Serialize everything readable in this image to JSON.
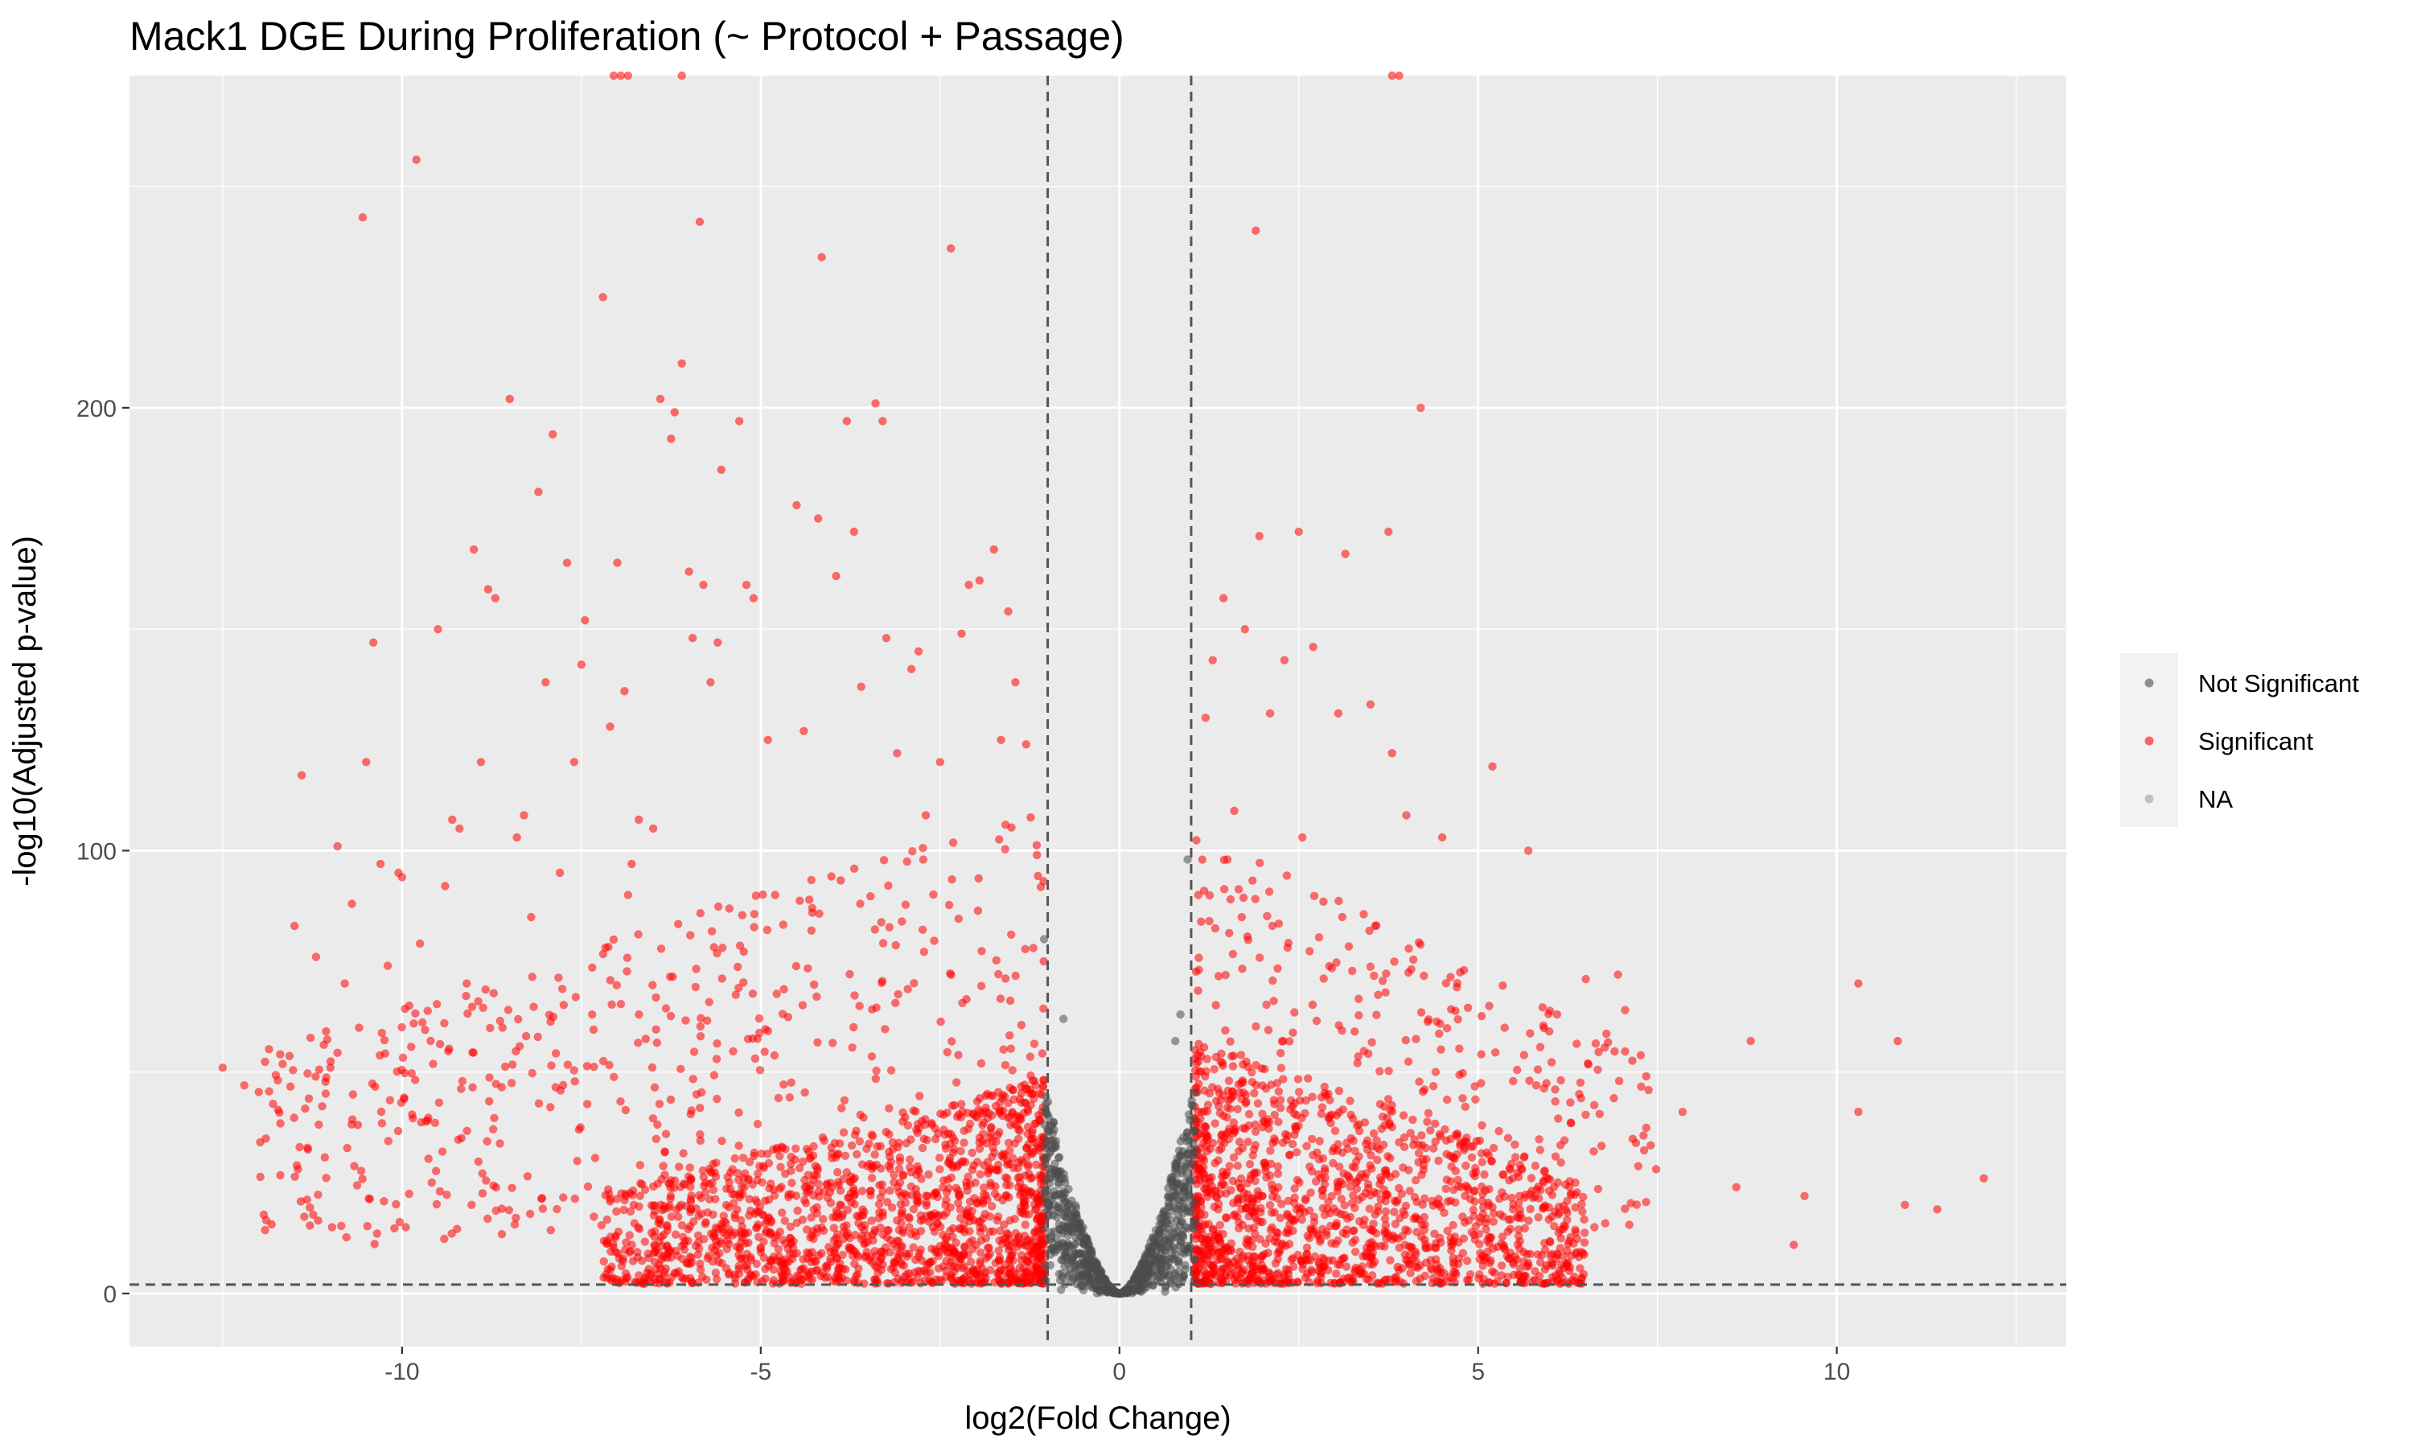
{
  "chart_data": {
    "type": "scatter",
    "title": "Mack1 DGE During Proliferation (~ Protocol + Passage)",
    "xlabel": "log2(Fold Change)",
    "ylabel": "-log10(Adjusted p-value)",
    "xlim": [
      -13.8,
      13.2
    ],
    "ylim": [
      -12,
      275
    ],
    "x_ticks": [
      -10,
      -5,
      0,
      5,
      10
    ],
    "y_ticks": [
      0,
      100,
      200
    ],
    "x_minor_ticks": [
      -12.5,
      -7.5,
      -2.5,
      2.5,
      7.5,
      12.5
    ],
    "y_minor_ticks": [
      50,
      150,
      250
    ],
    "grid": true,
    "thresholds": {
      "log2fc": [
        -1,
        1
      ],
      "neg_log10_padj": 2
    },
    "legend": {
      "position": "right",
      "entries": [
        {
          "label": "Not Significant",
          "color": "#4d4d4d"
        },
        {
          "label": "Significant",
          "color": "#ff0000"
        },
        {
          "label": "NA",
          "color": "#9e9e9e"
        }
      ]
    },
    "series": [
      {
        "name": "Significant",
        "color": "#ff0000",
        "points": [
          [
            -12.5,
            51
          ],
          [
            -12.2,
            47
          ],
          [
            -11.9,
            35
          ],
          [
            -11.7,
            54
          ],
          [
            -11.5,
            83
          ],
          [
            -11.4,
            117
          ],
          [
            -11.3,
            44
          ],
          [
            -11.2,
            76
          ],
          [
            -11.0,
            51
          ],
          [
            -10.9,
            101
          ],
          [
            -10.8,
            70
          ],
          [
            -10.7,
            88
          ],
          [
            -10.6,
            60
          ],
          [
            -10.55,
            243
          ],
          [
            -10.5,
            120
          ],
          [
            -10.4,
            147
          ],
          [
            -10.3,
            97
          ],
          [
            -10.2,
            74
          ],
          [
            -10.05,
            95
          ],
          [
            -10.0,
            94
          ],
          [
            -9.9,
            65
          ],
          [
            -9.8,
            256
          ],
          [
            -9.75,
            79
          ],
          [
            -9.5,
            150
          ],
          [
            -9.4,
            92
          ],
          [
            -9.3,
            107
          ],
          [
            -9.2,
            105
          ],
          [
            -9.1,
            70
          ],
          [
            -9.0,
            168
          ],
          [
            -8.9,
            120
          ],
          [
            -8.8,
            159
          ],
          [
            -8.7,
            157
          ],
          [
            -8.6,
            60
          ],
          [
            -8.5,
            202
          ],
          [
            -8.4,
            103
          ],
          [
            -8.3,
            108
          ],
          [
            -8.2,
            85
          ],
          [
            -8.1,
            181
          ],
          [
            -8.0,
            138
          ],
          [
            -7.9,
            194
          ],
          [
            -7.8,
            95
          ],
          [
            -7.7,
            165
          ],
          [
            -7.6,
            120
          ],
          [
            -7.5,
            142
          ],
          [
            -7.45,
            152
          ],
          [
            -7.35,
            63
          ],
          [
            -7.2,
            225
          ],
          [
            -7.1,
            128
          ],
          [
            -7.0,
            165
          ],
          [
            -6.9,
            136
          ],
          [
            -6.85,
            90
          ],
          [
            -6.8,
            97
          ],
          [
            -6.7,
            107
          ],
          [
            -6.5,
            105
          ],
          [
            -6.4,
            202
          ],
          [
            -6.25,
            193
          ],
          [
            -6.2,
            199
          ],
          [
            -6.1,
            210
          ],
          [
            -6.0,
            163
          ],
          [
            -5.95,
            148
          ],
          [
            -5.85,
            242
          ],
          [
            -5.8,
            160
          ],
          [
            -5.7,
            138
          ],
          [
            -5.6,
            147
          ],
          [
            -5.55,
            186
          ],
          [
            -5.3,
            197
          ],
          [
            -5.2,
            160
          ],
          [
            -5.1,
            157
          ],
          [
            -4.9,
            125
          ],
          [
            -4.8,
            90
          ],
          [
            -4.5,
            178
          ],
          [
            -4.4,
            127
          ],
          [
            -4.2,
            175
          ],
          [
            -4.15,
            234
          ],
          [
            -3.95,
            162
          ],
          [
            -3.8,
            197
          ],
          [
            -3.7,
            172
          ],
          [
            -3.6,
            137
          ],
          [
            -3.4,
            201
          ],
          [
            -3.3,
            197
          ],
          [
            -3.25,
            148
          ],
          [
            -3.1,
            122
          ],
          [
            -2.9,
            141
          ],
          [
            -2.8,
            145
          ],
          [
            -2.7,
            108
          ],
          [
            -2.5,
            120
          ],
          [
            -2.35,
            236
          ],
          [
            -2.2,
            149
          ],
          [
            -2.1,
            160
          ],
          [
            -1.95,
            161
          ],
          [
            -1.75,
            168
          ],
          [
            -1.65,
            125
          ],
          [
            -1.55,
            154
          ],
          [
            -1.45,
            138
          ],
          [
            -1.3,
            124
          ],
          [
            -1.2,
            78
          ],
          [
            -1.15,
            99
          ],
          [
            1.1,
            90
          ],
          [
            1.2,
            130
          ],
          [
            1.3,
            143
          ],
          [
            1.45,
            157
          ],
          [
            1.6,
            109
          ],
          [
            1.75,
            150
          ],
          [
            1.9,
            240
          ],
          [
            1.95,
            171
          ],
          [
            2.1,
            131
          ],
          [
            2.3,
            143
          ],
          [
            2.5,
            172
          ],
          [
            2.55,
            103
          ],
          [
            2.7,
            146
          ],
          [
            3.05,
            131
          ],
          [
            3.15,
            167
          ],
          [
            3.5,
            133
          ],
          [
            3.75,
            172
          ],
          [
            3.8,
            122
          ],
          [
            4.0,
            108
          ],
          [
            4.2,
            200
          ],
          [
            4.5,
            103
          ],
          [
            5.2,
            119
          ],
          [
            5.7,
            100
          ],
          [
            6.5,
            71
          ],
          [
            6.95,
            72
          ],
          [
            7.05,
            64
          ],
          [
            8.8,
            57
          ],
          [
            10.3,
            70
          ],
          [
            10.85,
            57
          ],
          [
            12.05,
            26
          ],
          [
            11.4,
            19
          ],
          [
            10.95,
            20
          ],
          [
            10.3,
            41
          ],
          [
            9.55,
            22
          ],
          [
            9.4,
            11
          ],
          [
            8.6,
            24
          ],
          [
            7.85,
            41
          ],
          [
            7.2,
            34
          ],
          [
            6.1,
            63
          ]
        ],
        "clusters": [
          {
            "x_range": [
              -7.2,
              -1.05
            ],
            "peak_y": 47,
            "count": 1500
          },
          {
            "x_range": [
              1.05,
              6.5
            ],
            "peak_y": 55,
            "count": 1300
          },
          {
            "x_range": [
              -12,
              -1.05
            ],
            "peak_y": 100,
            "count": 500
          },
          {
            "x_range": [
              1.05,
              7.5
            ],
            "peak_y": 95,
            "count": 320
          }
        ]
      },
      {
        "name": "Not Significant",
        "color": "#4d4d4d",
        "points": [
          [
            -1.05,
            80
          ],
          [
            -0.78,
            62
          ],
          [
            0.95,
            98
          ],
          [
            0.85,
            63
          ],
          [
            0.78,
            57
          ]
        ],
        "envelope": {
          "x_range": [
            -1.05,
            1.05
          ],
          "edge_y": 48,
          "count": 900
        }
      }
    ]
  }
}
